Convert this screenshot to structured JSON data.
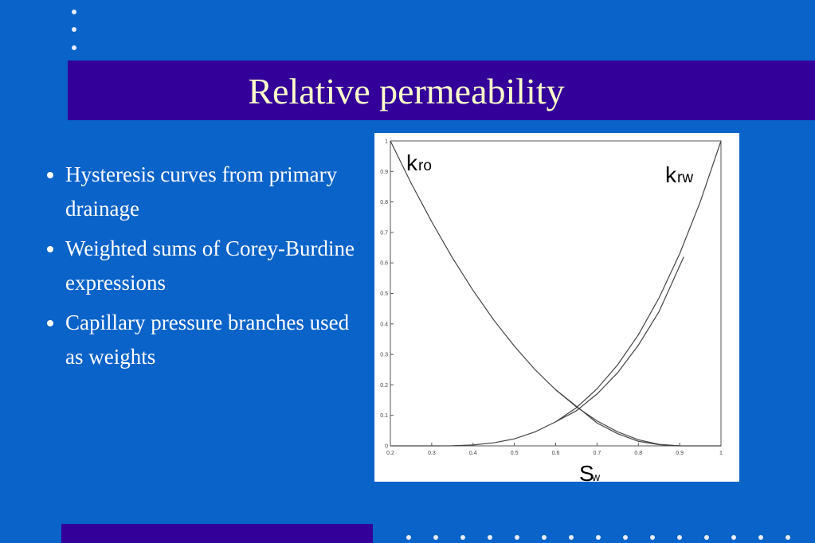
{
  "slide": {
    "title": "Relative permeability",
    "bullets": [
      "Hysteresis curves from primary drainage",
      "Weighted sums of Corey-Burdine expressions",
      "Capillary pressure branches used as weights"
    ]
  },
  "chart_data": {
    "type": "line",
    "annotations": [
      {
        "text": "k",
        "subscript": "ro"
      },
      {
        "text": "k",
        "subscript": "rw"
      },
      {
        "text": "S",
        "subscript": "w"
      }
    ],
    "xlim": [
      0.2,
      1
    ],
    "ylim": [
      0,
      1
    ],
    "xticks": [
      0.2,
      0.3,
      0.4,
      0.5,
      0.6,
      0.7,
      0.8,
      0.9,
      1
    ],
    "yticks": [
      0,
      0.1,
      0.2,
      0.3,
      0.4,
      0.5,
      0.6,
      0.7,
      0.8,
      0.9,
      1
    ],
    "series": [
      {
        "color": "#444444",
        "x": [
          0.2,
          0.25,
          0.3,
          0.35,
          0.4,
          0.45,
          0.5,
          0.55,
          0.6,
          0.65,
          0.7,
          0.75,
          0.8,
          0.85,
          0.9,
          0.95,
          1
        ],
        "values": [
          1,
          0.862,
          0.735,
          0.617,
          0.51,
          0.413,
          0.327,
          0.25,
          0.184,
          0.128,
          0.082,
          0.046,
          0.02,
          0.005,
          0,
          0,
          0
        ]
      },
      {
        "color": "#444444",
        "x": [
          0.2,
          0.25,
          0.3,
          0.35,
          0.4,
          0.45,
          0.5,
          0.55,
          0.6,
          0.65,
          0.7,
          0.75,
          0.8,
          0.85,
          0.9,
          0.95,
          1
        ],
        "values": [
          0,
          0,
          0,
          0.0004,
          0.003,
          0.01,
          0.023,
          0.046,
          0.079,
          0.125,
          0.187,
          0.266,
          0.364,
          0.485,
          0.63,
          0.801,
          1
        ]
      },
      {
        "color": "#444444",
        "x": [
          0.6,
          0.65,
          0.7,
          0.75,
          0.8,
          0.85,
          0.91
        ],
        "values": [
          0.079,
          0.115,
          0.17,
          0.24,
          0.33,
          0.44,
          0.62
        ]
      },
      {
        "color": "#444444",
        "x": [
          0.6,
          0.65,
          0.7,
          0.75,
          0.8,
          0.85,
          0.9
        ],
        "values": [
          0.184,
          0.13,
          0.075,
          0.04,
          0.015,
          0.004,
          0
        ]
      }
    ]
  }
}
